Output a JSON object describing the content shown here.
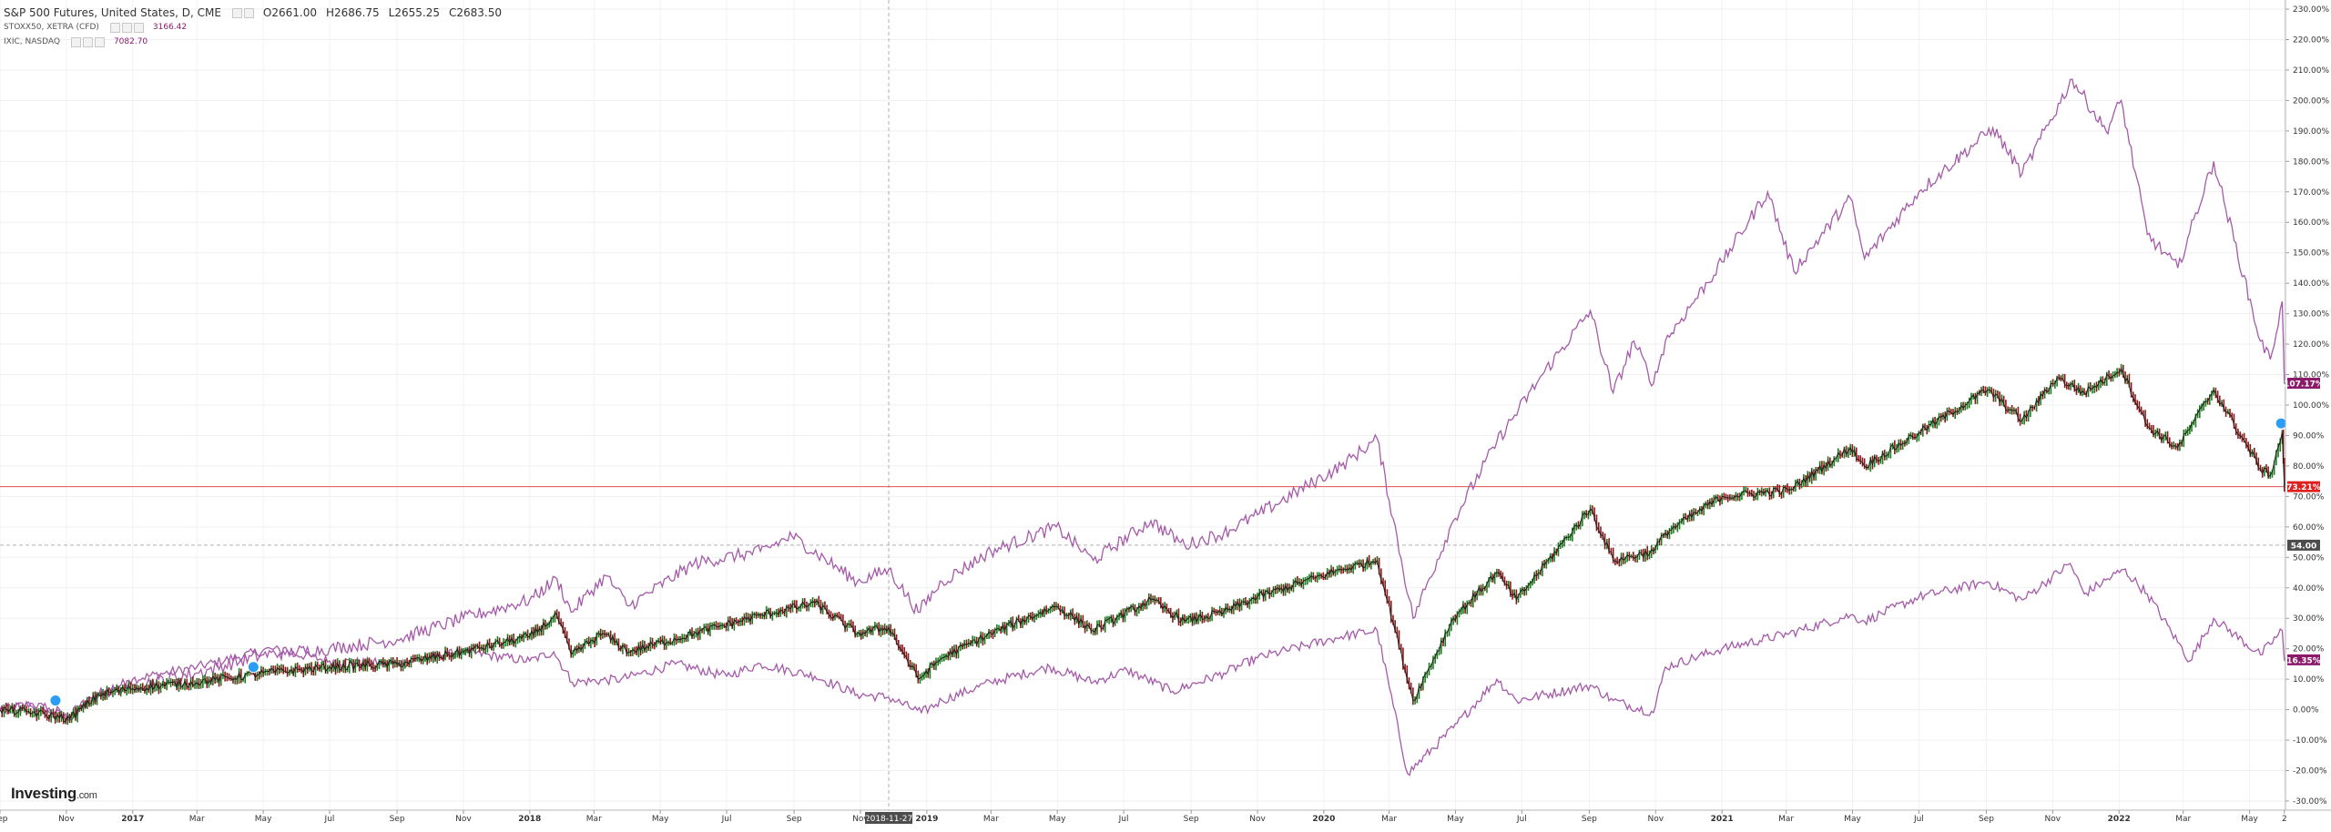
{
  "legend": {
    "main_symbol": "S&P 500 Futures, United States, D, CME",
    "open": "O2661.00",
    "high": "H2686.75",
    "low": "L2655.25",
    "close": "C2683.50",
    "compare": [
      {
        "symbol": "STOXX50, XETRA (CFD)",
        "value": "3166.42"
      },
      {
        "symbol": "IXIC, NASDAQ",
        "value": "7082.70"
      }
    ]
  },
  "logo": {
    "text": "Investing",
    "suffix": ".com"
  },
  "colors": {
    "main_line": "#1c1c1c",
    "up_candle": "#1e7b1e",
    "down_candle": "#8b1a1a",
    "compare_line": "#a45aa8",
    "h_line_red": "#e05050",
    "badge_purple": "#8b1a6b",
    "badge_red": "#e02020",
    "badge_gray": "#4d4d4d"
  },
  "crosshair_label": "2018-11-27",
  "badges": {
    "ixic": "107.17%",
    "main": "73.21%",
    "crosshair": "54.00",
    "stoxx": "16.35%"
  },
  "chart_data": {
    "type": "line",
    "title": "S&P 500 Futures, United States, D, CME",
    "y_axis": {
      "unit": "%",
      "ylim": [
        -33,
        233
      ],
      "ticks": [
        -30,
        -20,
        -10,
        0,
        10,
        20,
        30,
        40,
        50,
        60,
        70,
        80,
        90,
        100,
        110,
        120,
        130,
        140,
        150,
        160,
        170,
        180,
        190,
        200,
        210,
        220,
        230
      ],
      "tick_labels": [
        "-30.00%",
        "-20.00%",
        "-10.00%",
        "0.00%",
        "10.00%",
        "20.00%",
        "30.00%",
        "40.00%",
        "50.00%",
        "60.00%",
        "70.00%",
        "80.00%",
        "90.00%",
        "100.00%",
        "110.00%",
        "120.00%",
        "130.00%",
        "140.00%",
        "150.00%",
        "160.00%",
        "170.00%",
        "180.00%",
        "190.00%",
        "200.00%",
        "210.00%",
        "220.00%",
        "230.00%"
      ],
      "position": "right"
    },
    "x_axis": {
      "type": "date",
      "xlim": [
        "2016-09-01",
        "2022-06-03"
      ],
      "ticks": [
        {
          "label": "Sep",
          "date": "2016-09-01"
        },
        {
          "label": "Nov",
          "date": "2016-11-01"
        },
        {
          "label": "2017",
          "date": "2017-01-01"
        },
        {
          "label": "Mar",
          "date": "2017-03-01"
        },
        {
          "label": "May",
          "date": "2017-05-01"
        },
        {
          "label": "Jul",
          "date": "2017-07-01"
        },
        {
          "label": "Sep",
          "date": "2017-09-01"
        },
        {
          "label": "Nov",
          "date": "2017-11-01"
        },
        {
          "label": "2018",
          "date": "2018-01-01"
        },
        {
          "label": "Mar",
          "date": "2018-03-01"
        },
        {
          "label": "May",
          "date": "2018-05-01"
        },
        {
          "label": "Jul",
          "date": "2018-07-01"
        },
        {
          "label": "Sep",
          "date": "2018-09-01"
        },
        {
          "label": "Nov",
          "date": "2018-11-01"
        },
        {
          "label": "2019",
          "date": "2019-01-01"
        },
        {
          "label": "Mar",
          "date": "2019-03-01"
        },
        {
          "label": "May",
          "date": "2019-05-01"
        },
        {
          "label": "Jul",
          "date": "2019-07-01"
        },
        {
          "label": "Sep",
          "date": "2019-09-01"
        },
        {
          "label": "Nov",
          "date": "2019-11-01"
        },
        {
          "label": "2020",
          "date": "2020-01-01"
        },
        {
          "label": "Mar",
          "date": "2020-03-01"
        },
        {
          "label": "May",
          "date": "2020-05-01"
        },
        {
          "label": "Jul",
          "date": "2020-07-01"
        },
        {
          "label": "Sep",
          "date": "2020-09-01"
        },
        {
          "label": "Nov",
          "date": "2020-11-01"
        },
        {
          "label": "2021",
          "date": "2021-01-01"
        },
        {
          "label": "Mar",
          "date": "2021-03-01"
        },
        {
          "label": "May",
          "date": "2021-05-01"
        },
        {
          "label": "Jul",
          "date": "2021-07-01"
        },
        {
          "label": "Sep",
          "date": "2021-09-01"
        },
        {
          "label": "Nov",
          "date": "2021-11-01"
        },
        {
          "label": "2022",
          "date": "2022-01-01"
        },
        {
          "label": "Mar",
          "date": "2022-03-01"
        },
        {
          "label": "May",
          "date": "2022-05-01"
        },
        {
          "label": "2",
          "date": "2022-06-02"
        }
      ]
    },
    "grid": true,
    "series": [
      {
        "name": "S&P 500 Futures, United States, D, CME",
        "style": "candles",
        "points": [
          [
            "2016-09-01",
            0
          ],
          [
            "2016-10-01",
            -1
          ],
          [
            "2016-11-04",
            -3
          ],
          [
            "2016-12-01",
            5
          ],
          [
            "2017-01-01",
            7
          ],
          [
            "2017-03-01",
            9
          ],
          [
            "2017-05-01",
            12
          ],
          [
            "2017-07-01",
            14
          ],
          [
            "2017-09-01",
            15
          ],
          [
            "2017-11-01",
            19
          ],
          [
            "2018-01-01",
            24
          ],
          [
            "2018-01-26",
            31
          ],
          [
            "2018-02-08",
            18
          ],
          [
            "2018-03-09",
            25
          ],
          [
            "2018-04-02",
            19
          ],
          [
            "2018-06-01",
            25
          ],
          [
            "2018-08-01",
            31
          ],
          [
            "2018-09-20",
            35
          ],
          [
            "2018-10-29",
            25
          ],
          [
            "2018-11-27",
            27
          ],
          [
            "2018-12-24",
            10
          ],
          [
            "2019-01-15",
            17
          ],
          [
            "2019-03-01",
            25
          ],
          [
            "2019-04-30",
            34
          ],
          [
            "2019-06-03",
            26
          ],
          [
            "2019-07-26",
            36
          ],
          [
            "2019-08-26",
            29
          ],
          [
            "2019-10-01",
            32
          ],
          [
            "2019-11-01",
            37
          ],
          [
            "2020-01-17",
            46
          ],
          [
            "2020-02-19",
            49
          ],
          [
            "2020-03-23",
            3
          ],
          [
            "2020-04-29",
            30
          ],
          [
            "2020-06-08",
            45
          ],
          [
            "2020-06-26",
            36
          ],
          [
            "2020-09-02",
            66
          ],
          [
            "2020-09-23",
            49
          ],
          [
            "2020-10-30",
            52
          ],
          [
            "2020-11-10",
            58
          ],
          [
            "2021-01-01",
            70
          ],
          [
            "2021-03-04",
            72
          ],
          [
            "2021-04-29",
            86
          ],
          [
            "2021-05-12",
            80
          ],
          [
            "2021-07-01",
            91
          ],
          [
            "2021-09-02",
            105
          ],
          [
            "2021-10-04",
            95
          ],
          [
            "2021-11-05",
            109
          ],
          [
            "2021-11-30",
            104
          ],
          [
            "2022-01-03",
            112
          ],
          [
            "2022-01-27",
            93
          ],
          [
            "2022-02-24",
            86
          ],
          [
            "2022-03-29",
            105
          ],
          [
            "2022-05-11",
            79
          ],
          [
            "2022-05-20",
            77
          ],
          [
            "2022-05-31",
            91
          ],
          [
            "2022-06-02",
            73
          ]
        ]
      },
      {
        "name": "IXIC, NASDAQ",
        "style": "line",
        "points": [
          [
            "2016-09-01",
            0
          ],
          [
            "2016-10-01",
            1
          ],
          [
            "2016-11-04",
            -2
          ],
          [
            "2016-12-01",
            5
          ],
          [
            "2017-01-01",
            8
          ],
          [
            "2017-03-01",
            12
          ],
          [
            "2017-05-01",
            18
          ],
          [
            "2017-07-01",
            20
          ],
          [
            "2017-09-01",
            23
          ],
          [
            "2017-11-01",
            30
          ],
          [
            "2018-01-01",
            36
          ],
          [
            "2018-01-26",
            43
          ],
          [
            "2018-02-08",
            32
          ],
          [
            "2018-03-12",
            44
          ],
          [
            "2018-04-02",
            34
          ],
          [
            "2018-06-01",
            48
          ],
          [
            "2018-08-01",
            52
          ],
          [
            "2018-08-30",
            57
          ],
          [
            "2018-10-29",
            42
          ],
          [
            "2018-11-27",
            46
          ],
          [
            "2018-12-24",
            32
          ],
          [
            "2019-01-15",
            42
          ],
          [
            "2019-03-01",
            52
          ],
          [
            "2019-04-30",
            60
          ],
          [
            "2019-06-03",
            49
          ],
          [
            "2019-07-26",
            62
          ],
          [
            "2019-08-26",
            54
          ],
          [
            "2019-10-01",
            58
          ],
          [
            "2019-11-01",
            64
          ],
          [
            "2020-01-17",
            80
          ],
          [
            "2020-02-19",
            89
          ],
          [
            "2020-03-23",
            30
          ],
          [
            "2020-04-29",
            62
          ],
          [
            "2020-06-08",
            88
          ],
          [
            "2020-07-20",
            110
          ],
          [
            "2020-09-02",
            131
          ],
          [
            "2020-09-23",
            104
          ],
          [
            "2020-10-12",
            121
          ],
          [
            "2020-10-30",
            107
          ],
          [
            "2020-11-10",
            121
          ],
          [
            "2021-01-01",
            147
          ],
          [
            "2021-02-12",
            170
          ],
          [
            "2021-03-08",
            144
          ],
          [
            "2021-04-29",
            168
          ],
          [
            "2021-05-12",
            148
          ],
          [
            "2021-07-01",
            170
          ],
          [
            "2021-09-07",
            191
          ],
          [
            "2021-10-04",
            176
          ],
          [
            "2021-11-19",
            207
          ],
          [
            "2021-12-20",
            190
          ],
          [
            "2022-01-03",
            200
          ],
          [
            "2022-01-27",
            156
          ],
          [
            "2022-02-24",
            145
          ],
          [
            "2022-03-29",
            180
          ],
          [
            "2022-05-11",
            121
          ],
          [
            "2022-05-20",
            115
          ],
          [
            "2022-05-31",
            134
          ],
          [
            "2022-06-02",
            107
          ]
        ]
      },
      {
        "name": "STOXX50, XETRA (CFD)",
        "style": "line",
        "points": [
          [
            "2016-09-01",
            0
          ],
          [
            "2016-10-01",
            2
          ],
          [
            "2016-11-04",
            -3
          ],
          [
            "2016-12-01",
            5
          ],
          [
            "2017-01-01",
            10
          ],
          [
            "2017-03-01",
            14
          ],
          [
            "2017-05-08",
            20
          ],
          [
            "2017-07-01",
            16
          ],
          [
            "2017-09-01",
            15
          ],
          [
            "2017-11-01",
            19
          ],
          [
            "2018-01-01",
            16
          ],
          [
            "2018-01-23",
            19
          ],
          [
            "2018-02-09",
            9
          ],
          [
            "2018-03-26",
            10
          ],
          [
            "2018-05-15",
            15
          ],
          [
            "2018-07-01",
            11
          ],
          [
            "2018-08-01",
            15
          ],
          [
            "2018-09-20",
            11
          ],
          [
            "2018-10-29",
            5
          ],
          [
            "2018-11-27",
            4
          ],
          [
            "2018-12-27",
            -1
          ],
          [
            "2019-01-15",
            3
          ],
          [
            "2019-03-01",
            9
          ],
          [
            "2019-04-24",
            14
          ],
          [
            "2019-06-03",
            9
          ],
          [
            "2019-07-04",
            13
          ],
          [
            "2019-08-15",
            6
          ],
          [
            "2019-10-01",
            12
          ],
          [
            "2019-11-01",
            17
          ],
          [
            "2020-01-17",
            24
          ],
          [
            "2020-02-19",
            26
          ],
          [
            "2020-03-18",
            -21
          ],
          [
            "2020-04-29",
            -6
          ],
          [
            "2020-06-08",
            10
          ],
          [
            "2020-06-26",
            3
          ],
          [
            "2020-09-02",
            8
          ],
          [
            "2020-09-23",
            3
          ],
          [
            "2020-10-30",
            -1
          ],
          [
            "2020-11-10",
            14
          ],
          [
            "2021-01-01",
            20
          ],
          [
            "2021-03-04",
            25
          ],
          [
            "2021-04-29",
            31
          ],
          [
            "2021-05-12",
            29
          ],
          [
            "2021-07-01",
            37
          ],
          [
            "2021-09-02",
            42
          ],
          [
            "2021-10-04",
            36
          ],
          [
            "2021-11-17",
            48
          ],
          [
            "2021-11-30",
            38
          ],
          [
            "2022-01-05",
            46
          ],
          [
            "2022-01-27",
            38
          ],
          [
            "2022-03-07",
            16
          ],
          [
            "2022-03-29",
            30
          ],
          [
            "2022-05-11",
            18
          ],
          [
            "2022-05-31",
            26
          ],
          [
            "2022-06-02",
            16
          ]
        ]
      }
    ]
  }
}
